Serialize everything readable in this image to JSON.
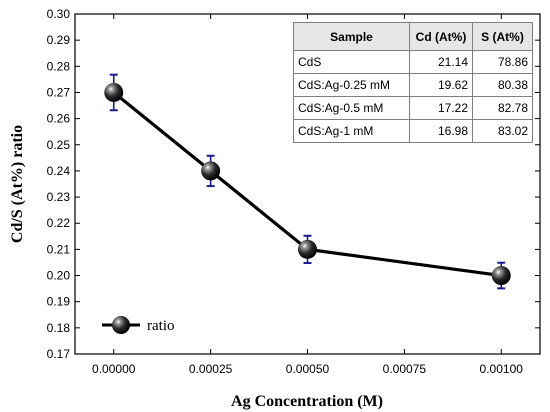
{
  "chart_data": {
    "type": "line",
    "xlabel": "Ag Concentration (M)",
    "ylabel": "Cd/S (At%) ratio",
    "xlim": [
      -0.0001,
      0.0011
    ],
    "ylim": [
      0.17,
      0.3
    ],
    "xticks": [
      0.0,
      0.00025,
      0.0005,
      0.00075,
      0.001
    ],
    "xtick_labels": [
      "0.00000",
      "0.00025",
      "0.00050",
      "0.00075",
      "0.00100"
    ],
    "yticks": [
      0.17,
      0.18,
      0.19,
      0.2,
      0.21,
      0.22,
      0.23,
      0.24,
      0.25,
      0.26,
      0.27,
      0.28,
      0.29,
      0.3
    ],
    "ytick_labels": [
      "0.17",
      "0.18",
      "0.19",
      "0.20",
      "0.21",
      "0.22",
      "0.23",
      "0.24",
      "0.25",
      "0.26",
      "0.27",
      "0.28",
      "0.29",
      "0.30"
    ],
    "grid": false,
    "legend_position": "bottom-left",
    "series": [
      {
        "name": "ratio",
        "x": [
          0.0,
          0.00025,
          0.0005,
          0.001
        ],
        "y": [
          0.27,
          0.24,
          0.21,
          0.2
        ],
        "error": [
          0.0068,
          0.0058,
          0.0052,
          0.0049
        ],
        "line_color": "#000000",
        "error_color": "#1a1a8c"
      }
    ]
  },
  "inset_table": {
    "headers": [
      "Sample",
      "Cd (At%)",
      "S (At%)"
    ],
    "rows": [
      [
        "CdS",
        "21.14",
        "78.86"
      ],
      [
        "CdS:Ag-0.25 mM",
        "19.62",
        "80.38"
      ],
      [
        "CdS:Ag-0.5 mM",
        "17.22",
        "82.78"
      ],
      [
        "CdS:Ag-1 mM",
        "16.98",
        "83.02"
      ]
    ]
  }
}
